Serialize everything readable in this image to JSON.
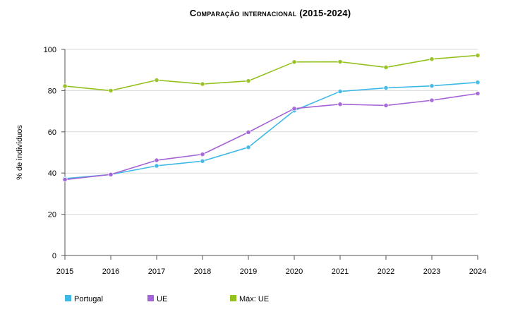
{
  "chart_data": {
    "type": "line",
    "title": "Comparação internacional (2015-2024)",
    "xlabel": "",
    "ylabel": "% de indivíduos",
    "x": [
      "2015",
      "2016",
      "2017",
      "2018",
      "2019",
      "2020",
      "2021",
      "2022",
      "2023",
      "2024"
    ],
    "ylim": [
      0,
      100
    ],
    "yticks": [
      "0",
      "20",
      "40",
      "60",
      "80",
      "100"
    ],
    "grid": true,
    "legend_position": "bottom-left",
    "series": [
      {
        "name": "Portugal",
        "color": "#3fb8e6",
        "values": [
          37.3,
          39.3,
          43.5,
          45.8,
          52.5,
          70.3,
          79.6,
          81.3,
          82.3,
          84.0
        ]
      },
      {
        "name": "UE",
        "color": "#a463d6",
        "values": [
          36.8,
          39.3,
          46.2,
          49.1,
          59.8,
          71.3,
          73.4,
          72.8,
          75.3,
          78.6
        ]
      },
      {
        "name": "Máx: UE",
        "color": "#95c11f",
        "values": [
          82.2,
          80.0,
          85.1,
          83.2,
          84.7,
          93.9,
          94.0,
          91.3,
          95.3,
          97.1
        ]
      }
    ]
  }
}
